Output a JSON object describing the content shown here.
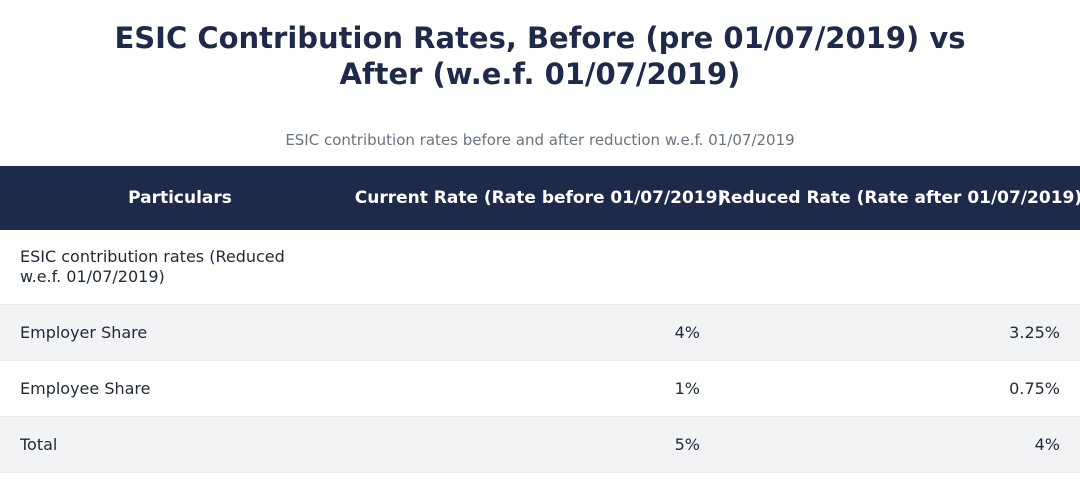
{
  "header": {
    "title": "ESIC Contribution Rates, Before (pre 01/07/2019) vs After (w.e.f. 01/07/2019)",
    "subtitle": "ESIC contribution rates before and after reduction w.e.f. 01/07/2019"
  },
  "table": {
    "columns": [
      "Particulars",
      "Current Rate (Rate before 01/07/2019)",
      "Reduced Rate (Rate after 01/07/2019)"
    ],
    "rows": [
      [
        "ESIC contribution rates (Reduced w.e.f. 01/07/2019)"
      ],
      [
        "Employer Share",
        "4%",
        "3.25%"
      ],
      [
        "Employee Share",
        "1%",
        "0.75%"
      ],
      [
        "Total",
        "5%",
        "4%"
      ]
    ]
  }
}
